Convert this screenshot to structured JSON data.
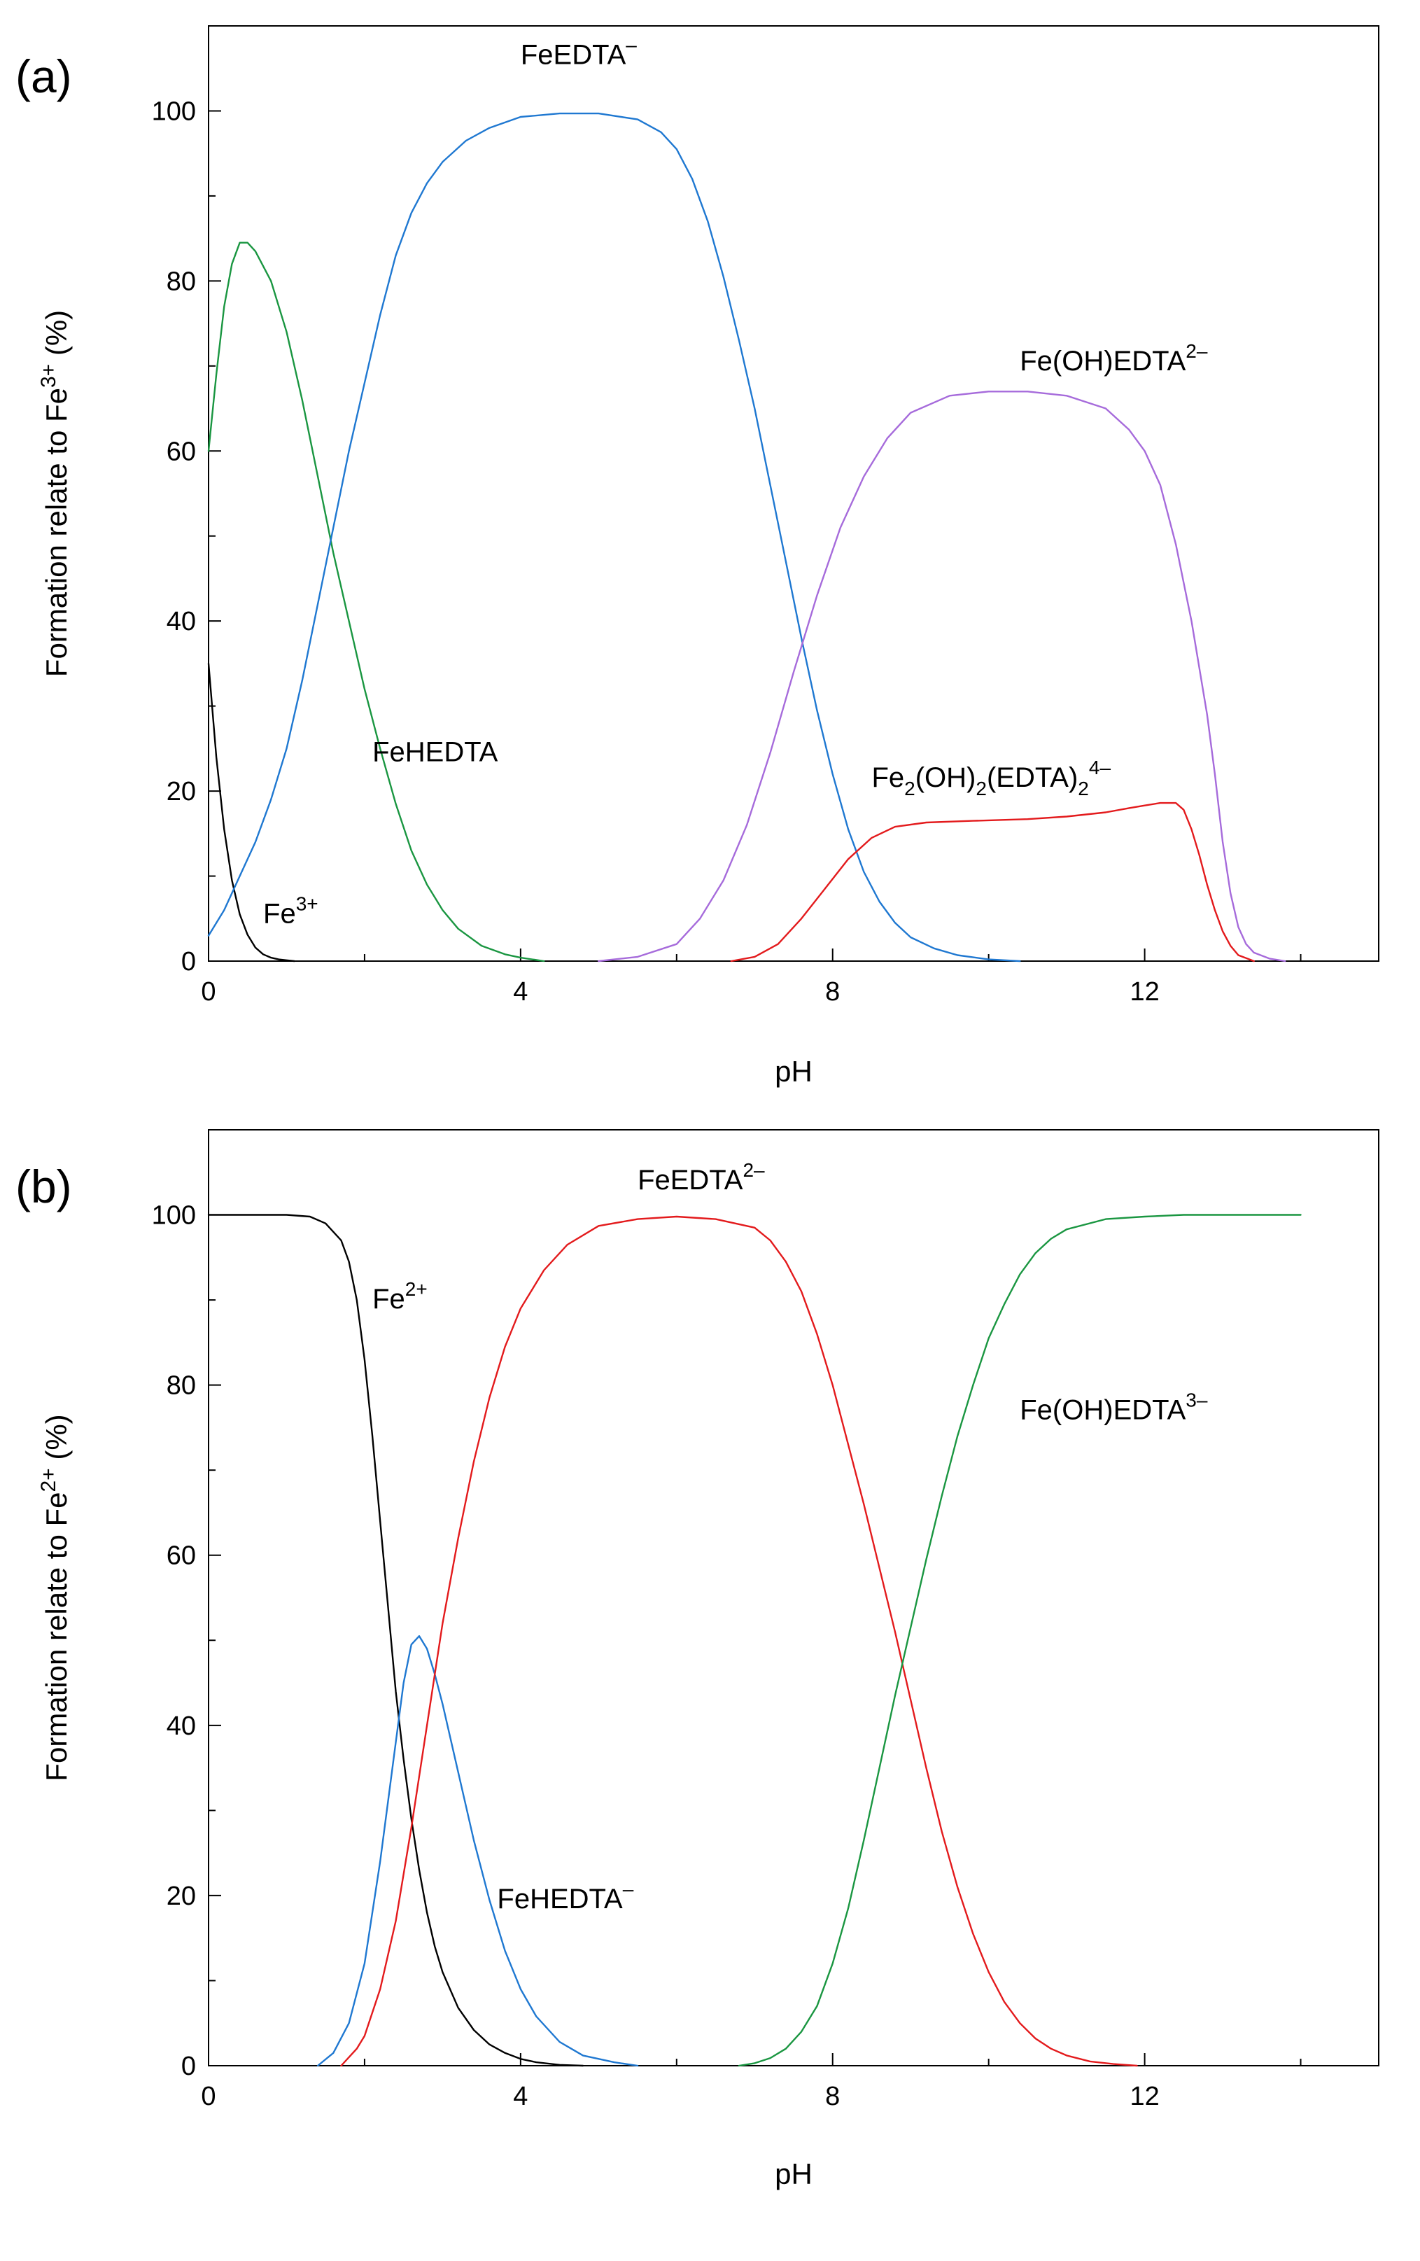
{
  "chart_data": [
    {
      "type": "line",
      "panel": "(a)",
      "xlabel": "pH",
      "ylabel": "Formation relate to Fe3+ (%)",
      "ylabel_parts": {
        "base": "Formation relate to Fe",
        "sup": "3+",
        "end": " (%)"
      },
      "xlim": [
        0,
        15
      ],
      "ylim": [
        0,
        110
      ],
      "xticks": [
        0,
        4,
        8,
        12
      ],
      "xtick_labels": [
        "0",
        "4",
        "8",
        "12"
      ],
      "yticks": [
        0,
        20,
        40,
        60,
        80,
        100
      ],
      "ytick_labels": [
        "0",
        "20",
        "40",
        "60",
        "80",
        "100"
      ],
      "series": [
        {
          "name": "Fe3+",
          "color": "#000000",
          "x": [
            0,
            0.1,
            0.2,
            0.3,
            0.4,
            0.5,
            0.6,
            0.7,
            0.8,
            0.9,
            1.0,
            1.1
          ],
          "y": [
            35,
            24,
            15.5,
            9.5,
            5.5,
            3.1,
            1.6,
            0.8,
            0.4,
            0.2,
            0.1,
            0
          ]
        },
        {
          "name": "FeHEDTA",
          "color": "#1a9641",
          "x": [
            0,
            0.1,
            0.2,
            0.3,
            0.4,
            0.5,
            0.6,
            0.8,
            1.0,
            1.2,
            1.4,
            1.6,
            1.8,
            2.0,
            2.2,
            2.4,
            2.6,
            2.8,
            3.0,
            3.2,
            3.5,
            3.8,
            4.0,
            4.3
          ],
          "y": [
            60,
            69,
            77,
            82,
            84.5,
            84.5,
            83.5,
            80,
            74,
            66,
            57,
            48,
            40,
            32,
            25,
            18.5,
            13,
            9,
            6,
            3.8,
            1.8,
            0.8,
            0.4,
            0
          ]
        },
        {
          "name": "FeEDTA-",
          "color": "#1f78d1",
          "x": [
            0,
            0.2,
            0.4,
            0.6,
            0.8,
            1.0,
            1.2,
            1.4,
            1.6,
            1.8,
            2.0,
            2.2,
            2.4,
            2.6,
            2.8,
            3.0,
            3.3,
            3.6,
            4.0,
            4.5,
            5.0,
            5.5,
            5.8,
            6.0,
            6.2,
            6.4,
            6.6,
            6.8,
            7.0,
            7.2,
            7.4,
            7.6,
            7.8,
            8.0,
            8.2,
            8.4,
            8.6,
            8.8,
            9.0,
            9.3,
            9.6,
            10.0,
            10.4
          ],
          "y": [
            3,
            6,
            10,
            14,
            19,
            25,
            33,
            42,
            51,
            60,
            68,
            76,
            83,
            88,
            91.5,
            94,
            96.5,
            98,
            99.3,
            99.7,
            99.7,
            99,
            97.5,
            95.5,
            92,
            87,
            80.5,
            73,
            65,
            56,
            47,
            38,
            29.5,
            22,
            15.5,
            10.5,
            7,
            4.5,
            2.8,
            1.5,
            0.7,
            0.2,
            0
          ]
        },
        {
          "name": "Fe(OH)EDTA2-",
          "color": "#a66bdb",
          "x": [
            5.0,
            5.5,
            6.0,
            6.3,
            6.6,
            6.9,
            7.2,
            7.5,
            7.8,
            8.1,
            8.4,
            8.7,
            9.0,
            9.5,
            10.0,
            10.5,
            11.0,
            11.5,
            11.8,
            12.0,
            12.2,
            12.4,
            12.6,
            12.8,
            12.9,
            13.0,
            13.1,
            13.2,
            13.3,
            13.4,
            13.6,
            13.8
          ],
          "y": [
            0,
            0.5,
            2,
            5,
            9.5,
            16,
            24.5,
            34,
            43,
            51,
            57,
            61.5,
            64.5,
            66.5,
            67,
            67,
            66.5,
            65,
            62.5,
            60,
            56,
            49,
            40,
            29,
            22,
            14,
            8,
            4,
            2,
            1,
            0.3,
            0
          ]
        },
        {
          "name": "Fe2(OH)2(EDTA)2 4-",
          "color": "#e31a1c",
          "x": [
            6.7,
            7.0,
            7.3,
            7.6,
            7.9,
            8.2,
            8.5,
            8.8,
            9.2,
            9.8,
            10.5,
            11.0,
            11.5,
            11.8,
            12.0,
            12.2,
            12.4,
            12.5,
            12.6,
            12.7,
            12.8,
            12.9,
            13.0,
            13.1,
            13.2,
            13.4
          ],
          "y": [
            0,
            0.5,
            2,
            5,
            8.5,
            12,
            14.5,
            15.8,
            16.3,
            16.5,
            16.7,
            17,
            17.5,
            18,
            18.3,
            18.6,
            18.6,
            17.8,
            15.5,
            12.5,
            9,
            6,
            3.5,
            1.8,
            0.7,
            0
          ]
        }
      ],
      "annotations": [
        {
          "parts": [
            "FeEDTA",
            "",
            "–"
          ],
          "x": 4.0,
          "y": 105.5
        },
        {
          "parts": [
            "Fe(OH)EDTA",
            "",
            "2–"
          ],
          "x": 10.4,
          "y": 69.5
        },
        {
          "parts": [
            "FeHEDTA",
            "",
            ""
          ],
          "x": 2.1,
          "y": 23.5
        },
        {
          "parts": [
            "Fe",
            "",
            "3+"
          ],
          "x": 0.7,
          "y": 4.5
        },
        {
          "parts": [
            "Fe",
            "2",
            "(OH)",
            "2",
            "(EDTA)",
            "2",
            "4–"
          ],
          "x": 8.5,
          "y": 20.5,
          "style": "complex"
        }
      ]
    },
    {
      "type": "line",
      "panel": "(b)",
      "xlabel": "pH",
      "ylabel": "Formation relate to Fe2+ (%)",
      "ylabel_parts": {
        "base": "Formation relate to Fe",
        "sup": "2+",
        "end": " (%)"
      },
      "xlim": [
        0,
        15
      ],
      "ylim": [
        0,
        110
      ],
      "xticks": [
        0,
        4,
        8,
        12
      ],
      "xtick_labels": [
        "0",
        "4",
        "8",
        "12"
      ],
      "yticks": [
        0,
        20,
        40,
        60,
        80,
        100
      ],
      "ytick_labels": [
        "0",
        "20",
        "40",
        "60",
        "80",
        "100"
      ],
      "series": [
        {
          "name": "Fe2+",
          "color": "#000000",
          "x": [
            0,
            1.0,
            1.3,
            1.5,
            1.7,
            1.8,
            1.9,
            2.0,
            2.1,
            2.2,
            2.3,
            2.4,
            2.5,
            2.6,
            2.7,
            2.8,
            2.9,
            3.0,
            3.2,
            3.4,
            3.6,
            3.8,
            4.0,
            4.2,
            4.5,
            4.8
          ],
          "y": [
            100,
            100,
            99.8,
            99,
            97,
            94.5,
            90,
            83,
            74,
            64,
            54,
            44,
            36,
            29,
            23,
            18,
            14,
            11,
            6.8,
            4.2,
            2.5,
            1.5,
            0.8,
            0.4,
            0.1,
            0
          ]
        },
        {
          "name": "FeHEDTA-",
          "color": "#1f78d1",
          "x": [
            1.4,
            1.6,
            1.8,
            2.0,
            2.2,
            2.4,
            2.5,
            2.6,
            2.7,
            2.8,
            2.9,
            3.0,
            3.2,
            3.4,
            3.6,
            3.8,
            4.0,
            4.2,
            4.5,
            4.8,
            5.2,
            5.5
          ],
          "y": [
            0,
            1.5,
            5,
            12,
            24,
            38,
            45,
            49.5,
            50.5,
            49,
            46,
            42.5,
            34.5,
            26.5,
            19.5,
            13.5,
            9,
            5.8,
            2.8,
            1.2,
            0.4,
            0
          ]
        },
        {
          "name": "FeEDTA2-",
          "color": "#e31a1c",
          "x": [
            1.7,
            1.9,
            2.0,
            2.2,
            2.4,
            2.6,
            2.8,
            3.0,
            3.2,
            3.4,
            3.6,
            3.8,
            4.0,
            4.3,
            4.6,
            5.0,
            5.5,
            6.0,
            6.5,
            7.0,
            7.2,
            7.4,
            7.6,
            7.8,
            8.0,
            8.2,
            8.4,
            8.6,
            8.8,
            9.0,
            9.2,
            9.4,
            9.6,
            9.8,
            10.0,
            10.2,
            10.4,
            10.6,
            10.8,
            11.0,
            11.3,
            11.6,
            11.9
          ],
          "y": [
            0,
            2,
            3.5,
            9,
            17,
            28,
            40,
            52,
            62,
            71,
            78.5,
            84.5,
            89,
            93.5,
            96.5,
            98.7,
            99.5,
            99.8,
            99.5,
            98.5,
            97,
            94.5,
            91,
            86,
            80,
            73,
            66,
            58.5,
            51,
            43,
            35,
            27.5,
            21,
            15.5,
            11,
            7.5,
            5,
            3.2,
            2,
            1.2,
            0.5,
            0.2,
            0
          ]
        },
        {
          "name": "Fe(OH)EDTA3-",
          "color": "#1a9641",
          "x": [
            6.8,
            7.0,
            7.2,
            7.4,
            7.6,
            7.8,
            8.0,
            8.2,
            8.4,
            8.6,
            8.8,
            9.0,
            9.2,
            9.4,
            9.6,
            9.8,
            10.0,
            10.2,
            10.4,
            10.6,
            10.8,
            11.0,
            11.5,
            12.0,
            12.5,
            13.0,
            14.0
          ],
          "y": [
            0,
            0.3,
            0.9,
            2,
            4,
            7,
            12,
            18.5,
            26.5,
            35,
            43.5,
            51.5,
            59.5,
            67,
            74,
            80,
            85.5,
            89.5,
            93,
            95.5,
            97.2,
            98.3,
            99.5,
            99.8,
            100,
            100,
            100
          ]
        }
      ],
      "annotations": [
        {
          "parts": [
            "FeEDTA",
            "",
            "2–"
          ],
          "x": 5.5,
          "y": 103
        },
        {
          "parts": [
            "Fe",
            "",
            "2+"
          ],
          "x": 2.1,
          "y": 89
        },
        {
          "parts": [
            "Fe(OH)EDTA",
            "",
            "3–"
          ],
          "x": 10.4,
          "y": 76
        },
        {
          "parts": [
            "FeHEDTA",
            "",
            "–"
          ],
          "x": 3.7,
          "y": 18.5
        }
      ]
    }
  ]
}
